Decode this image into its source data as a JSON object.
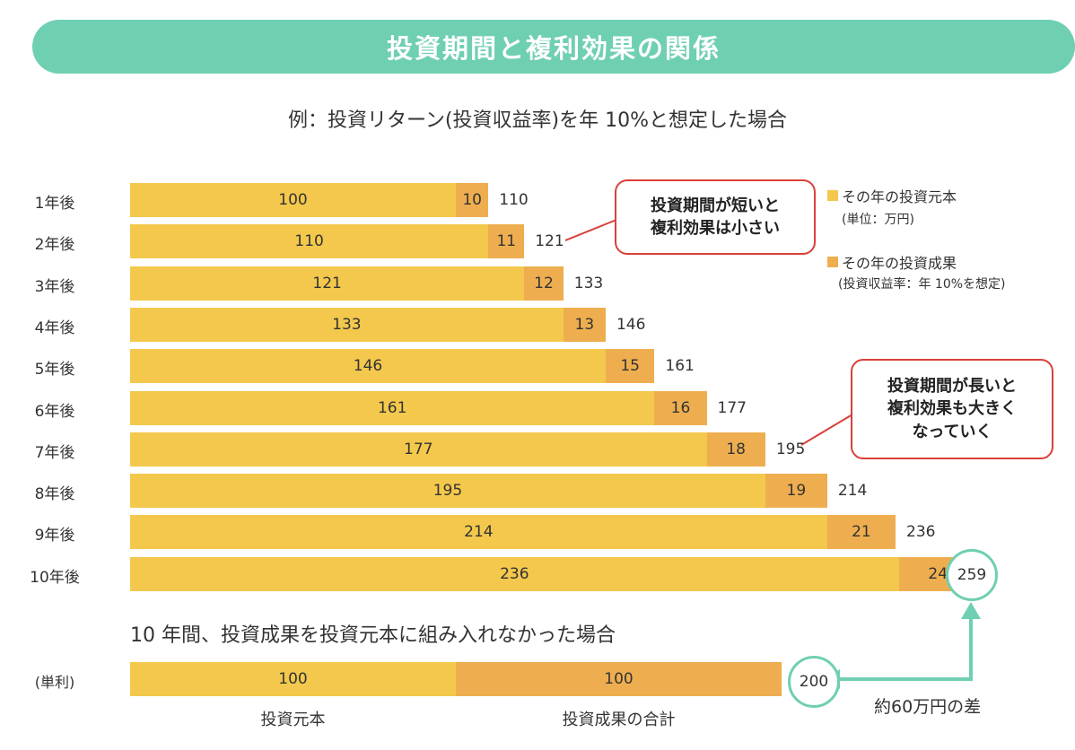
{
  "title": "投資期間と複利効果の関係",
  "subtitle": "例：投資リターン(投資収益率)を年 10%と想定した場合",
  "legend": {
    "principal_label": "その年の投資元本",
    "principal_note": "(単位：万円)",
    "gain_label": "その年の投資成果",
    "gain_note": "(投資収益率：年 10%を想定)"
  },
  "callouts": {
    "short": [
      "投資期間が短いと",
      "複利効果は小さい"
    ],
    "long": [
      "投資期間が長いと",
      "複利効果も大きく",
      "なっていく"
    ]
  },
  "simple": {
    "heading": "10 年間、投資成果を投資元本に組み入れなかった場合",
    "row_label": "(単利)",
    "principal": 100,
    "gain": 100,
    "total": 200,
    "principal_caption": "投資元本",
    "gain_caption": "投資成果の合計"
  },
  "difference_label": "約60万円の差",
  "colors": {
    "principal": "#f3c84c",
    "gain": "#eeae4f",
    "accent": "#6fcfb2",
    "callout_border": "#d9403a"
  },
  "chart_data": {
    "type": "bar",
    "orientation": "horizontal",
    "stacked": true,
    "categories": [
      "1年後",
      "2年後",
      "3年後",
      "4年後",
      "5年後",
      "6年後",
      "7年後",
      "8年後",
      "9年後",
      "10年後"
    ],
    "series": [
      {
        "name": "その年の投資元本",
        "values": [
          100,
          110,
          121,
          133,
          146,
          161,
          177,
          195,
          214,
          236
        ]
      },
      {
        "name": "その年の投資成果",
        "values": [
          10,
          11,
          12,
          13,
          15,
          16,
          18,
          19,
          21,
          24
        ]
      }
    ],
    "totals": [
      110,
      121,
      133,
      146,
      161,
      177,
      195,
      214,
      236,
      259
    ],
    "legend_position": "top-right",
    "grid": false
  }
}
